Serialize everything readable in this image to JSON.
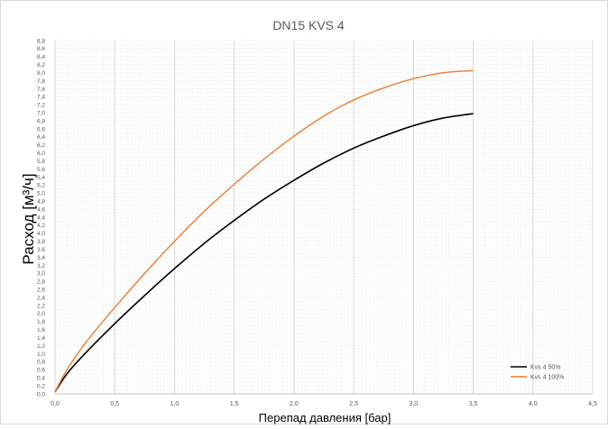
{
  "chart_data": {
    "type": "line",
    "title": "DN15 KVS 4",
    "xlabel": "Перепад давления [бар]",
    "ylabel": "Расход  [м³/ч]",
    "xlim": [
      0,
      4.5
    ],
    "ylim": [
      0,
      8.8
    ],
    "x_ticks": [
      "0,0",
      "0,5",
      "1,0",
      "1,5",
      "2,0",
      "2,5",
      "3,0",
      "3,5",
      "4,0",
      "4,5"
    ],
    "y_ticks": [
      "0,0",
      "0,2",
      "0,4",
      "0,6",
      "0,8",
      "1,0",
      "1,2",
      "1,4",
      "1,6",
      "1,8",
      "2,0",
      "2,2",
      "2,4",
      "2,6",
      "2,8",
      "3,0",
      "3,2",
      "3,4",
      "3,6",
      "3,8",
      "4,0",
      "4,2",
      "4,4",
      "4,6",
      "4,8",
      "5,0",
      "5,2",
      "5,4",
      "5,6",
      "5,8",
      "6,0",
      "6,2",
      "6,4",
      "6,6",
      "6,8",
      "7,0",
      "7,2",
      "7,4",
      "7,6",
      "7,8",
      "8,0",
      "8,2",
      "8,4",
      "8,6",
      "8,8"
    ],
    "grid": true,
    "legend_position": "bottom-right",
    "series": [
      {
        "name": "Kvs 4 50%",
        "color": "#000000",
        "x": [
          0.0,
          0.1,
          0.25,
          0.5,
          0.75,
          1.0,
          1.25,
          1.5,
          1.75,
          2.0,
          2.25,
          2.5,
          2.75,
          3.0,
          3.25,
          3.5
        ],
        "y": [
          0.05,
          0.5,
          1.0,
          1.75,
          2.45,
          3.12,
          3.75,
          4.32,
          4.85,
          5.32,
          5.75,
          6.12,
          6.42,
          6.68,
          6.87,
          6.98
        ]
      },
      {
        "name": "Kvs 4 100%",
        "color": "#ED7D31",
        "x": [
          0.0,
          0.1,
          0.25,
          0.5,
          0.75,
          1.0,
          1.25,
          1.5,
          1.75,
          2.0,
          2.25,
          2.5,
          2.75,
          3.0,
          3.25,
          3.5
        ],
        "y": [
          0.05,
          0.6,
          1.25,
          2.15,
          3.0,
          3.8,
          4.55,
          5.22,
          5.85,
          6.42,
          6.92,
          7.32,
          7.62,
          7.85,
          8.0,
          8.05
        ]
      }
    ]
  }
}
